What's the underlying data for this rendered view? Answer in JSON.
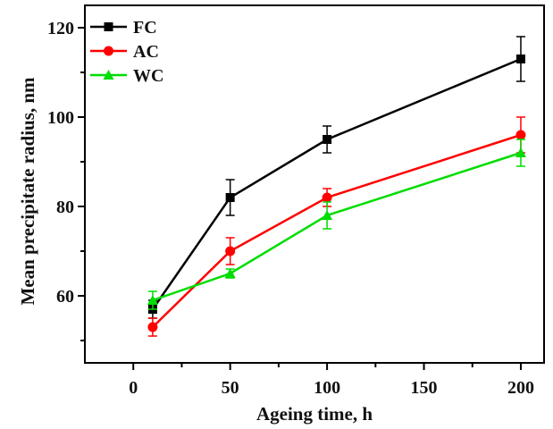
{
  "chart_data": {
    "type": "line",
    "title": "",
    "xlabel": "Ageing time, h",
    "ylabel": "Mean precipitate radius, nm",
    "xlim": [
      -25,
      212
    ],
    "ylim": [
      45,
      125
    ],
    "xticks": [
      0,
      50,
      100,
      150,
      200
    ],
    "yticks": [
      60,
      80,
      100,
      120
    ],
    "x_minor_step": 25,
    "y_minor_step": 10,
    "grid": false,
    "legend_position": "top-left",
    "x": [
      10,
      50,
      100,
      200
    ],
    "series": [
      {
        "name": "FC",
        "color": "#000000",
        "marker": "square",
        "values": [
          57,
          82,
          95,
          113
        ],
        "errors": [
          2,
          4,
          3,
          5
        ]
      },
      {
        "name": "AC",
        "color": "#ff0000",
        "marker": "circle",
        "values": [
          53,
          70,
          82,
          96
        ],
        "errors": [
          2,
          3,
          2,
          4
        ]
      },
      {
        "name": "WC",
        "color": "#00dd00",
        "marker": "triangle",
        "values": [
          59,
          65,
          78,
          92
        ],
        "errors": [
          2,
          1,
          3,
          3
        ]
      }
    ]
  }
}
